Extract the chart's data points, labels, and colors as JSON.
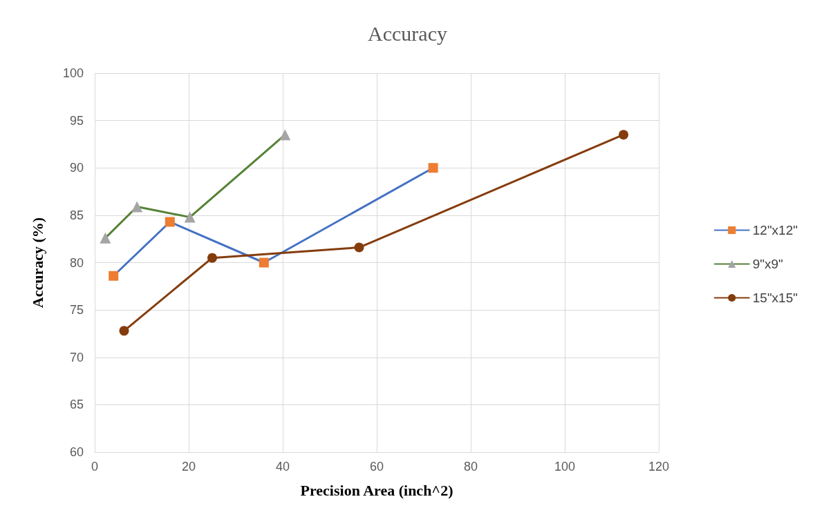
{
  "chart_data": {
    "type": "line",
    "title": "Accuracy",
    "xlabel": "Precision Area (inch^2)",
    "ylabel": "Accuracy (%)",
    "xlim": [
      0,
      120
    ],
    "xticks": [
      0,
      20,
      40,
      60,
      80,
      100,
      120
    ],
    "ylim": [
      60,
      100
    ],
    "yticks": [
      60,
      65,
      70,
      75,
      80,
      85,
      90,
      95,
      100
    ],
    "grid": true,
    "legend": "right",
    "line_style": "solid",
    "series": [
      {
        "name": "12\"x12\"",
        "color": "#4472c4",
        "colors": [
          "#ed7d31",
          "#ed7d31",
          "#ed7d31",
          "#ed7d31"
        ],
        "marker": "square",
        "x": [
          4,
          16,
          36,
          72
        ],
        "values": [
          78.6,
          84.3,
          80.0,
          90.0
        ]
      },
      {
        "name": "9\"x9\"",
        "color": "#548235",
        "colors": [
          "#a5a5a5",
          "#a5a5a5",
          "#a5a5a5",
          "#a5a5a5"
        ],
        "marker": "triangle",
        "x": [
          2.25,
          9,
          20.25,
          40.5
        ],
        "values": [
          82.6,
          85.9,
          84.8,
          93.5
        ]
      },
      {
        "name": "15\"x15\"",
        "color": "#843c0c",
        "colors": [
          "#843c0c",
          "#843c0c",
          "#843c0c",
          "#843c0c"
        ],
        "marker": "circle",
        "x": [
          6.25,
          25,
          56.25,
          112.5
        ],
        "values": [
          72.8,
          80.5,
          81.6,
          93.5
        ]
      }
    ]
  }
}
